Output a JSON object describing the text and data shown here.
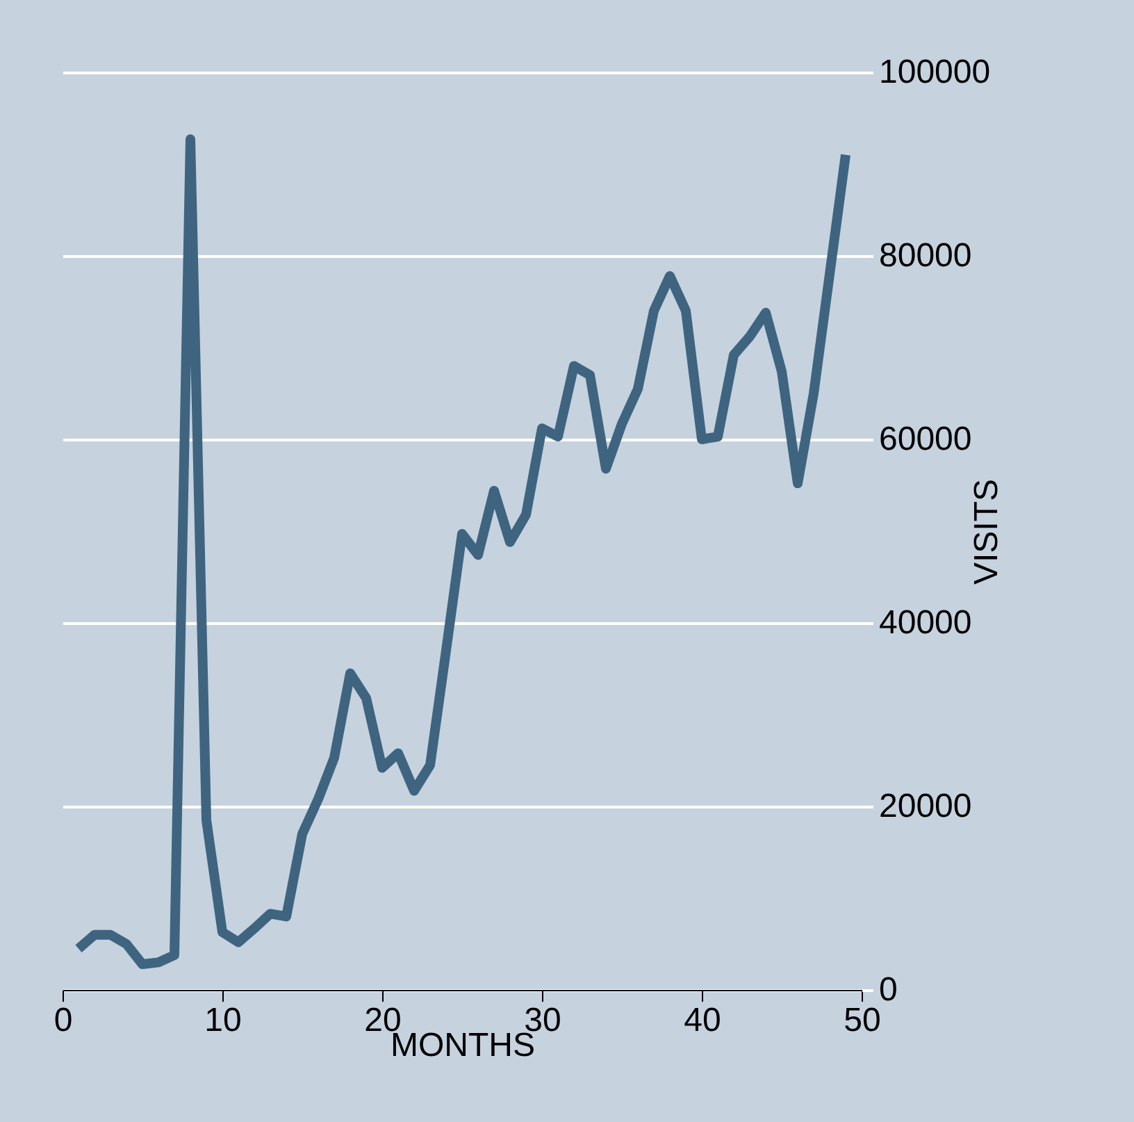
{
  "chart_data": {
    "type": "line",
    "xlabel": "MONTHS",
    "ylabel": "VISITS",
    "x": [
      1,
      2,
      3,
      4,
      5,
      6,
      7,
      8,
      9,
      10,
      11,
      12,
      13,
      14,
      15,
      16,
      17,
      18,
      19,
      20,
      21,
      22,
      23,
      24,
      25,
      26,
      27,
      28,
      29,
      30,
      31,
      32,
      33,
      34,
      35,
      36,
      37,
      38,
      39,
      40,
      41,
      42,
      43,
      44,
      45,
      46,
      47,
      48,
      49
    ],
    "series": [
      {
        "color": "#3e6480",
        "values": [
          4500,
          6000,
          6000,
          5000,
          2800,
          3000,
          3800,
          92700,
          18500,
          6300,
          5200,
          6700,
          8300,
          8000,
          17000,
          20800,
          25300,
          34500,
          31800,
          24200,
          25800,
          21700,
          24500,
          37000,
          49700,
          47400,
          54400,
          48800,
          51800,
          61200,
          60300,
          68000,
          67000,
          56800,
          61700,
          65500,
          74000,
          77800,
          74000,
          60000,
          60300,
          69200,
          71200,
          73800,
          67400,
          55200,
          65000,
          78000,
          91000
        ]
      }
    ],
    "xlim": [
      0,
      50
    ],
    "xticks": [
      0,
      10,
      20,
      30,
      40,
      50
    ],
    "ylim": [
      0,
      100000
    ],
    "yticks": [
      0,
      20000,
      40000,
      60000,
      80000,
      100000
    ],
    "grid": "y",
    "marker": "none",
    "line_style": "solid"
  }
}
